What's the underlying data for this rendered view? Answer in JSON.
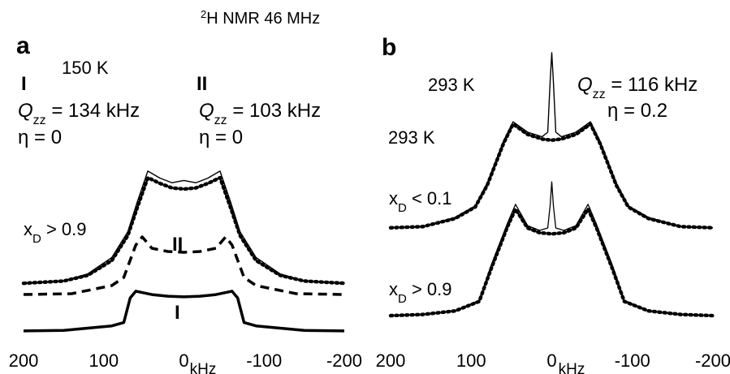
{
  "figure": {
    "title_prefix_sup": "2",
    "title_main": "H NMR 46 MHz"
  },
  "panels": {
    "a": {
      "letter": "a",
      "temperature": "150 K",
      "site_I": {
        "roman": "I",
        "q_symbol": "Q",
        "q_sub": "zz",
        "q_value": " = 134 kHz",
        "eta": "η = 0"
      },
      "site_II": {
        "roman": "II",
        "q_symbol": "Q",
        "q_sub": "zz",
        "q_value": " = 103 kHz",
        "eta": "η = 0"
      },
      "xD_label": "x",
      "xD_sub": "D",
      "xD_tail": " > 0.9",
      "curve_labels": {
        "I": "I",
        "II": "II"
      }
    },
    "b": {
      "letter": "b",
      "temperature_top": "293 K",
      "temperature_mid": "293 K",
      "qzz_symbol": "Q",
      "qzz_sub": "zz",
      "qzz_value": " = 116 kHz",
      "eta": "η = 0.2",
      "trace_top": {
        "label": "x",
        "sub": "D",
        "tail": " < 0.1"
      },
      "trace_bottom": {
        "label": "x",
        "sub": "D",
        "tail": " > 0.9"
      }
    }
  },
  "chart_data": [
    {
      "type": "line",
      "panel": "a",
      "xunit": "kHz",
      "xlim": [
        200,
        -200
      ],
      "xticks": [
        200,
        100,
        0,
        -100,
        -200
      ],
      "xticklabels": [
        "200",
        "100",
        "0",
        "-100",
        "-200"
      ],
      "series": [
        {
          "line_style": "solid",
          "x": [
            200,
            150,
            120,
            90,
            70,
            58,
            45,
            30,
            15,
            0,
            -15,
            -30,
            -45,
            -58,
            -70,
            -90,
            -120,
            -150,
            -200
          ],
          "y": [
            0.02,
            0.04,
            0.1,
            0.24,
            0.46,
            0.72,
            0.98,
            0.92,
            0.88,
            0.9,
            0.88,
            0.92,
            0.98,
            0.72,
            0.46,
            0.24,
            0.1,
            0.04,
            0.02
          ]
        },
        {
          "line_style": "dotted",
          "x": [
            200,
            150,
            120,
            90,
            70,
            58,
            45,
            30,
            15,
            0,
            -15,
            -30,
            -45,
            -58,
            -70,
            -90,
            -120,
            -150,
            -200
          ],
          "y": [
            0.02,
            0.04,
            0.09,
            0.22,
            0.44,
            0.69,
            0.95,
            0.9,
            0.86,
            0.85,
            0.86,
            0.9,
            0.95,
            0.69,
            0.44,
            0.22,
            0.09,
            0.04,
            0.02
          ]
        },
        {
          "name": "II",
          "line_style": "dashed",
          "x": [
            200,
            140,
            90,
            75,
            60,
            52,
            40,
            20,
            0,
            -20,
            -40,
            -52,
            -60,
            -75,
            -90,
            -140,
            -200
          ],
          "y": [
            0.03,
            0.04,
            0.14,
            0.24,
            0.64,
            0.74,
            0.6,
            0.56,
            0.55,
            0.56,
            0.6,
            0.74,
            0.64,
            0.24,
            0.14,
            0.04,
            0.03
          ]
        },
        {
          "name": "I",
          "line_style": "solid",
          "x": [
            200,
            150,
            120,
            90,
            75,
            67,
            60,
            40,
            20,
            0,
            -20,
            -40,
            -60,
            -67,
            -75,
            -90,
            -120,
            -150,
            -200
          ],
          "y": [
            0.03,
            0.04,
            0.08,
            0.12,
            0.18,
            0.62,
            0.74,
            0.68,
            0.65,
            0.64,
            0.65,
            0.68,
            0.74,
            0.62,
            0.18,
            0.12,
            0.08,
            0.04,
            0.03
          ]
        }
      ]
    },
    {
      "type": "line",
      "panel": "b",
      "xunit": "kHz",
      "xlim": [
        200,
        -200
      ],
      "xticks": [
        200,
        100,
        0,
        -100,
        -200
      ],
      "xticklabels": [
        "200",
        "100",
        "0",
        "-100",
        "-200"
      ],
      "series": [
        {
          "name": "x_D < 0.1",
          "line_style": "solid",
          "x": [
            200,
            160,
            120,
            95,
            80,
            60,
            48,
            30,
            12,
            5,
            2,
            0,
            -2,
            -5,
            -12,
            -30,
            -48,
            -60,
            -80,
            -95,
            -120,
            -160,
            -200
          ],
          "y": [
            0.03,
            0.04,
            0.12,
            0.22,
            0.42,
            0.78,
            0.95,
            0.86,
            0.82,
            0.86,
            1.3,
            1.55,
            1.3,
            0.86,
            0.82,
            0.86,
            0.95,
            0.78,
            0.42,
            0.22,
            0.12,
            0.04,
            0.03
          ]
        },
        {
          "name": "x_D < 0.1 fit",
          "line_style": "dotted",
          "x": [
            200,
            160,
            120,
            95,
            80,
            60,
            48,
            30,
            12,
            0,
            -12,
            -30,
            -48,
            -60,
            -80,
            -95,
            -120,
            -160,
            -200
          ],
          "y": [
            0.03,
            0.04,
            0.11,
            0.21,
            0.4,
            0.76,
            0.93,
            0.84,
            0.8,
            0.79,
            0.8,
            0.84,
            0.93,
            0.76,
            0.4,
            0.21,
            0.11,
            0.04,
            0.03
          ]
        },
        {
          "name": "x_D > 0.9",
          "line_style": "solid",
          "x": [
            200,
            160,
            120,
            90,
            75,
            55,
            45,
            30,
            15,
            5,
            2,
            0,
            -2,
            -5,
            -15,
            -30,
            -45,
            -55,
            -75,
            -90,
            -120,
            -160,
            -200
          ],
          "y": [
            0.02,
            0.03,
            0.06,
            0.15,
            0.45,
            0.8,
            0.96,
            0.78,
            0.74,
            0.76,
            0.95,
            1.15,
            0.95,
            0.76,
            0.74,
            0.78,
            0.96,
            0.8,
            0.45,
            0.15,
            0.06,
            0.03,
            0.02
          ]
        },
        {
          "name": "x_D > 0.9 fit",
          "line_style": "dotted",
          "x": [
            200,
            160,
            120,
            90,
            75,
            55,
            45,
            30,
            15,
            0,
            -15,
            -30,
            -45,
            -55,
            -75,
            -90,
            -120,
            -160,
            -200
          ],
          "y": [
            0.02,
            0.03,
            0.06,
            0.14,
            0.42,
            0.77,
            0.92,
            0.76,
            0.72,
            0.71,
            0.72,
            0.76,
            0.92,
            0.77,
            0.42,
            0.14,
            0.06,
            0.03,
            0.02
          ]
        }
      ]
    }
  ]
}
